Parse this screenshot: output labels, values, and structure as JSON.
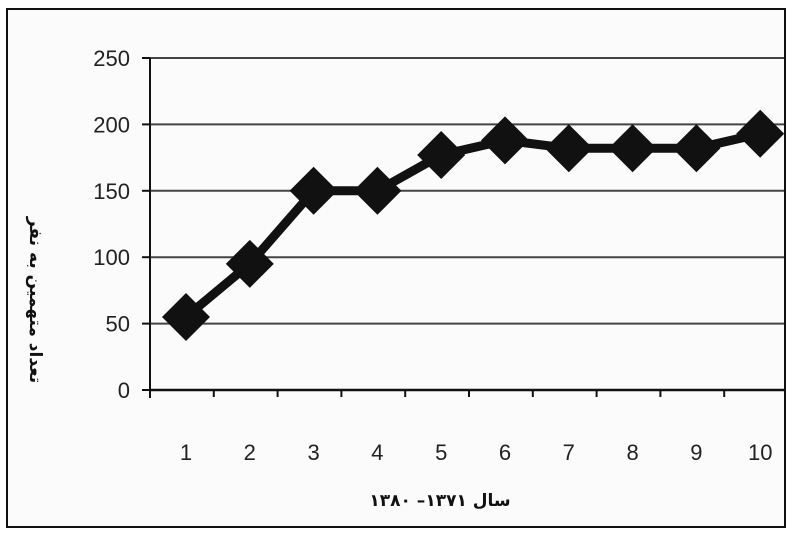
{
  "chart_data": {
    "type": "line",
    "title": "",
    "xlabel": "سال ۱۳۷۱– ۱۳۸۰",
    "ylabel": "تعداد متهمین به نفر",
    "categories": [
      "1",
      "2",
      "3",
      "4",
      "5",
      "6",
      "7",
      "8",
      "9",
      "10"
    ],
    "series": [
      {
        "values": [
          55,
          95,
          150,
          150,
          177,
          188,
          182,
          182,
          182,
          193
        ]
      }
    ],
    "ylim": [
      0,
      250
    ],
    "yticks": [
      0,
      50,
      100,
      150,
      200,
      250
    ],
    "grid": true,
    "legend": "none",
    "colors": {
      "line": "#111111",
      "grid": "#444444",
      "marker": "#111111"
    },
    "marker": "diamond"
  }
}
